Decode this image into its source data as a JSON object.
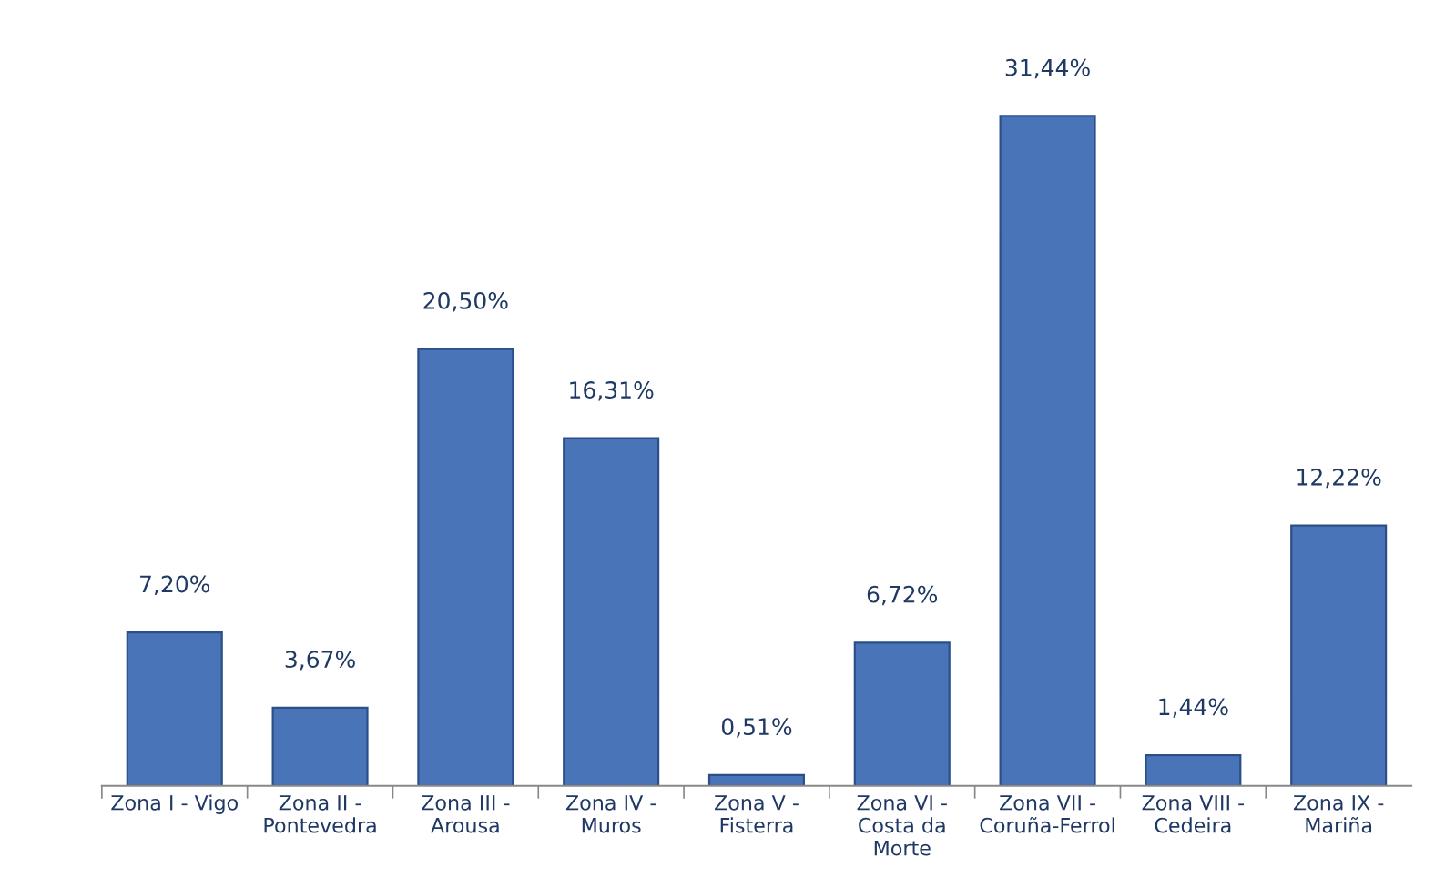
{
  "chart_data": {
    "type": "bar",
    "categories": [
      "Zona I - Vigo",
      "Zona II -\nPontevedra",
      "Zona III -\nArousa",
      "Zona IV -\nMuros",
      "Zona V -\nFisterra",
      "Zona VI -\nCosta da\nMorte",
      "Zona VII -\nCoruña-Ferrol",
      "Zona VIII -\nCedeira",
      "Zona IX -\nMariña"
    ],
    "values": [
      7.2,
      3.67,
      20.5,
      16.31,
      0.51,
      6.72,
      31.44,
      1.44,
      12.22
    ],
    "value_labels": [
      "7,20%",
      "3,67%",
      "20,50%",
      "16,31%",
      "0,51%",
      "6,72%",
      "31,44%",
      "1,44%",
      "12,22%"
    ],
    "color": "#4a74b8",
    "grid": false,
    "legend": false
  }
}
